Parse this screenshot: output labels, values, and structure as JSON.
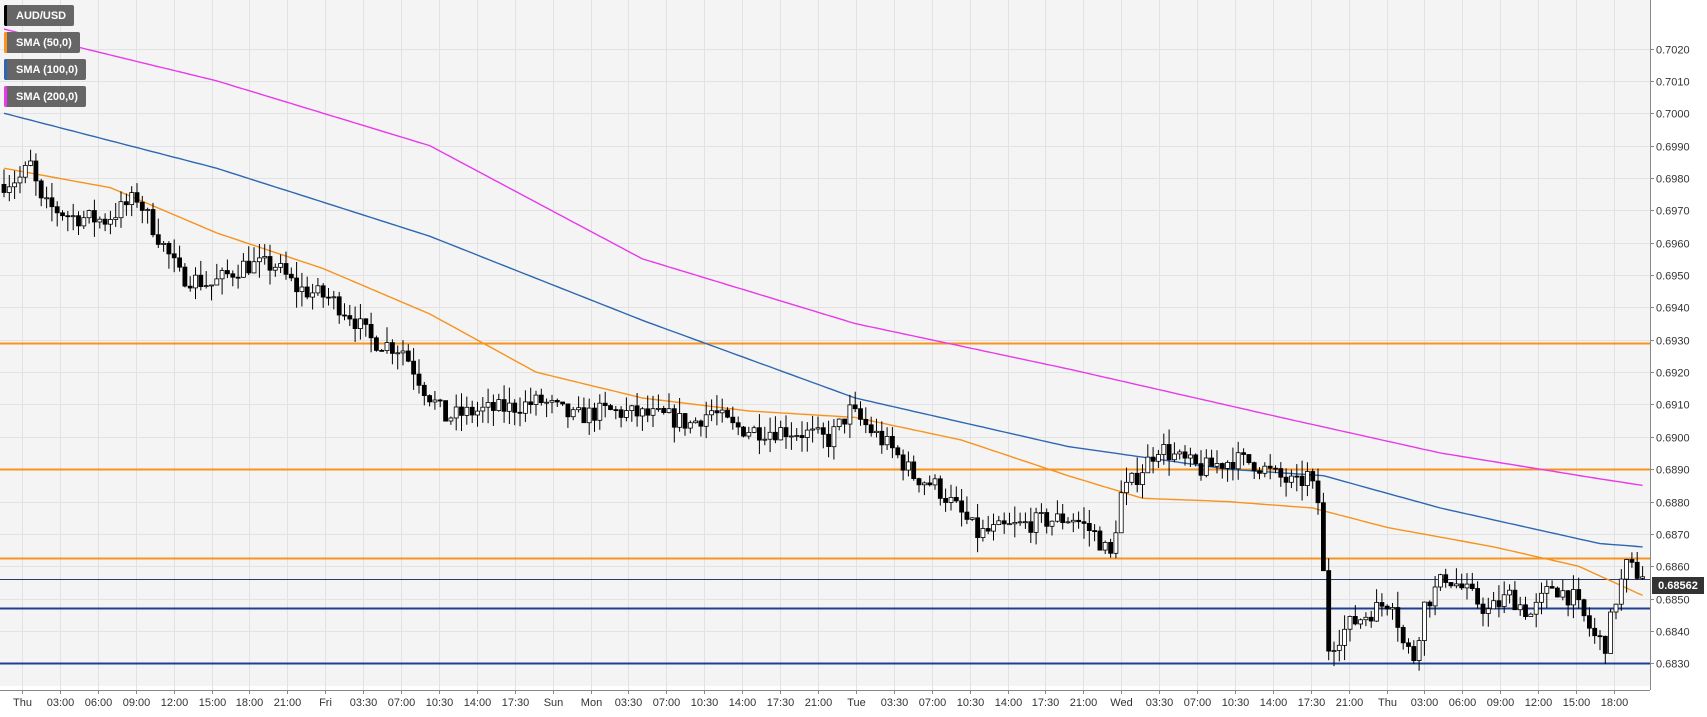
{
  "legend": [
    {
      "label": "AUD/USD",
      "color": "#000000"
    },
    {
      "label": "SMA (50,0)",
      "color": "#f7931e"
    },
    {
      "label": "SMA (100,0)",
      "color": "#2e67b1"
    },
    {
      "label": "SMA (200,0)",
      "color": "#e83ae8"
    }
  ],
  "current_price": "0.68562",
  "chart_data": {
    "type": "candlestick",
    "symbol": "AUD/USD",
    "ylim": [
      0.6823,
      0.7035
    ],
    "y_ticks": [
      "0.6830",
      "0.6840",
      "0.6850",
      "0.6860",
      "0.6870",
      "0.6880",
      "0.6890",
      "0.6900",
      "0.6910",
      "0.6920",
      "0.6930",
      "0.6940",
      "0.6950",
      "0.6960",
      "0.6970",
      "0.6980",
      "0.6990",
      "0.7000",
      "0.7010",
      "0.7020"
    ],
    "x_ticks": [
      "Thu",
      "03:00",
      "06:00",
      "09:00",
      "12:00",
      "15:00",
      "18:00",
      "21:00",
      "Fri",
      "03:30",
      "07:00",
      "10:30",
      "14:00",
      "17:30",
      "Sun",
      "Mon",
      "03:30",
      "07:00",
      "10:30",
      "14:00",
      "17:30",
      "21:00",
      "Tue",
      "03:30",
      "07:00",
      "10:30",
      "14:00",
      "17:30",
      "21:00",
      "Wed",
      "03:30",
      "07:00",
      "10:30",
      "14:00",
      "17:30",
      "21:00",
      "Thu",
      "03:00",
      "06:00",
      "09:00",
      "12:00",
      "15:00",
      "18:00"
    ],
    "grid": true,
    "colors": {
      "up": "#ffffff",
      "down": "#000000",
      "sma50": "#f7931e",
      "sma100": "#2e67b1",
      "sma200": "#e83ae8",
      "resistance": "#f7931e",
      "support": "#1f3f8f"
    },
    "horizontal_levels": [
      {
        "price": 0.6929,
        "kind": "resistance"
      },
      {
        "price": 0.689,
        "kind": "resistance"
      },
      {
        "price": 0.68625,
        "kind": "resistance"
      },
      {
        "price": 0.6847,
        "kind": "support"
      },
      {
        "price": 0.683,
        "kind": "support"
      }
    ],
    "last_price_line": 0.68562,
    "path_anchors": [
      [
        0,
        0.6978
      ],
      [
        4,
        0.698
      ],
      [
        6,
        0.6984
      ],
      [
        8,
        0.6972
      ],
      [
        14,
        0.6968
      ],
      [
        20,
        0.6967
      ],
      [
        26,
        0.6974
      ],
      [
        30,
        0.6962
      ],
      [
        34,
        0.695
      ],
      [
        40,
        0.6947
      ],
      [
        46,
        0.6953
      ],
      [
        52,
        0.6953
      ],
      [
        56,
        0.6946
      ],
      [
        62,
        0.6943
      ],
      [
        66,
        0.6938
      ],
      [
        70,
        0.693
      ],
      [
        76,
        0.6927
      ],
      [
        80,
        0.6915
      ],
      [
        84,
        0.6906
      ],
      [
        90,
        0.6908
      ],
      [
        96,
        0.6909
      ],
      [
        102,
        0.6911
      ],
      [
        108,
        0.6906
      ],
      [
        114,
        0.6908
      ],
      [
        120,
        0.6907
      ],
      [
        126,
        0.6906
      ],
      [
        130,
        0.6904
      ],
      [
        134,
        0.6908
      ],
      [
        138,
        0.6903
      ],
      [
        142,
        0.6902
      ],
      [
        148,
        0.6902
      ],
      [
        152,
        0.6901
      ],
      [
        156,
        0.6899
      ],
      [
        160,
        0.6908
      ],
      [
        164,
        0.6902
      ],
      [
        168,
        0.6896
      ],
      [
        172,
        0.6888
      ],
      [
        176,
        0.6885
      ],
      [
        180,
        0.6878
      ],
      [
        184,
        0.687
      ],
      [
        190,
        0.6872
      ],
      [
        196,
        0.6874
      ],
      [
        202,
        0.6875
      ],
      [
        206,
        0.687
      ],
      [
        209,
        0.6863
      ],
      [
        211,
        0.6882
      ],
      [
        214,
        0.6888
      ],
      [
        218,
        0.6897
      ],
      [
        222,
        0.6893
      ],
      [
        226,
        0.689
      ],
      [
        232,
        0.6893
      ],
      [
        236,
        0.6892
      ],
      [
        240,
        0.6888
      ],
      [
        244,
        0.6885
      ],
      [
        246,
        0.6888
      ],
      [
        248,
        0.688
      ],
      [
        250,
        0.6835
      ],
      [
        254,
        0.6842
      ],
      [
        258,
        0.6846
      ],
      [
        262,
        0.685
      ],
      [
        264,
        0.6836
      ],
      [
        266,
        0.6832
      ],
      [
        268,
        0.6848
      ],
      [
        272,
        0.6857
      ],
      [
        276,
        0.6852
      ],
      [
        280,
        0.6846
      ],
      [
        284,
        0.6851
      ],
      [
        288,
        0.6845
      ],
      [
        292,
        0.6854
      ],
      [
        296,
        0.685
      ],
      [
        300,
        0.6838
      ],
      [
        302,
        0.6836
      ],
      [
        304,
        0.685
      ],
      [
        306,
        0.686
      ],
      [
        308,
        0.6858
      ]
    ],
    "sma50_anchors": [
      [
        0,
        0.6983
      ],
      [
        20,
        0.6977
      ],
      [
        40,
        0.6963
      ],
      [
        60,
        0.6952
      ],
      [
        80,
        0.6938
      ],
      [
        100,
        0.692
      ],
      [
        120,
        0.6912
      ],
      [
        140,
        0.6908
      ],
      [
        160,
        0.6906
      ],
      [
        180,
        0.6899
      ],
      [
        200,
        0.6888
      ],
      [
        214,
        0.6881
      ],
      [
        230,
        0.688
      ],
      [
        246,
        0.6878
      ],
      [
        260,
        0.6872
      ],
      [
        280,
        0.6866
      ],
      [
        296,
        0.686
      ],
      [
        308,
        0.6851
      ]
    ],
    "sma100_anchors": [
      [
        0,
        0.7
      ],
      [
        40,
        0.6983
      ],
      [
        80,
        0.6962
      ],
      [
        120,
        0.6936
      ],
      [
        160,
        0.6912
      ],
      [
        200,
        0.6897
      ],
      [
        230,
        0.689
      ],
      [
        248,
        0.6888
      ],
      [
        270,
        0.6878
      ],
      [
        300,
        0.6867
      ],
      [
        308,
        0.6866
      ]
    ],
    "sma200_anchors": [
      [
        0,
        0.7026
      ],
      [
        40,
        0.701
      ],
      [
        80,
        0.699
      ],
      [
        120,
        0.6955
      ],
      [
        160,
        0.6935
      ],
      [
        200,
        0.6921
      ],
      [
        240,
        0.6906
      ],
      [
        270,
        0.6895
      ],
      [
        300,
        0.6887
      ],
      [
        308,
        0.6885
      ]
    ]
  }
}
